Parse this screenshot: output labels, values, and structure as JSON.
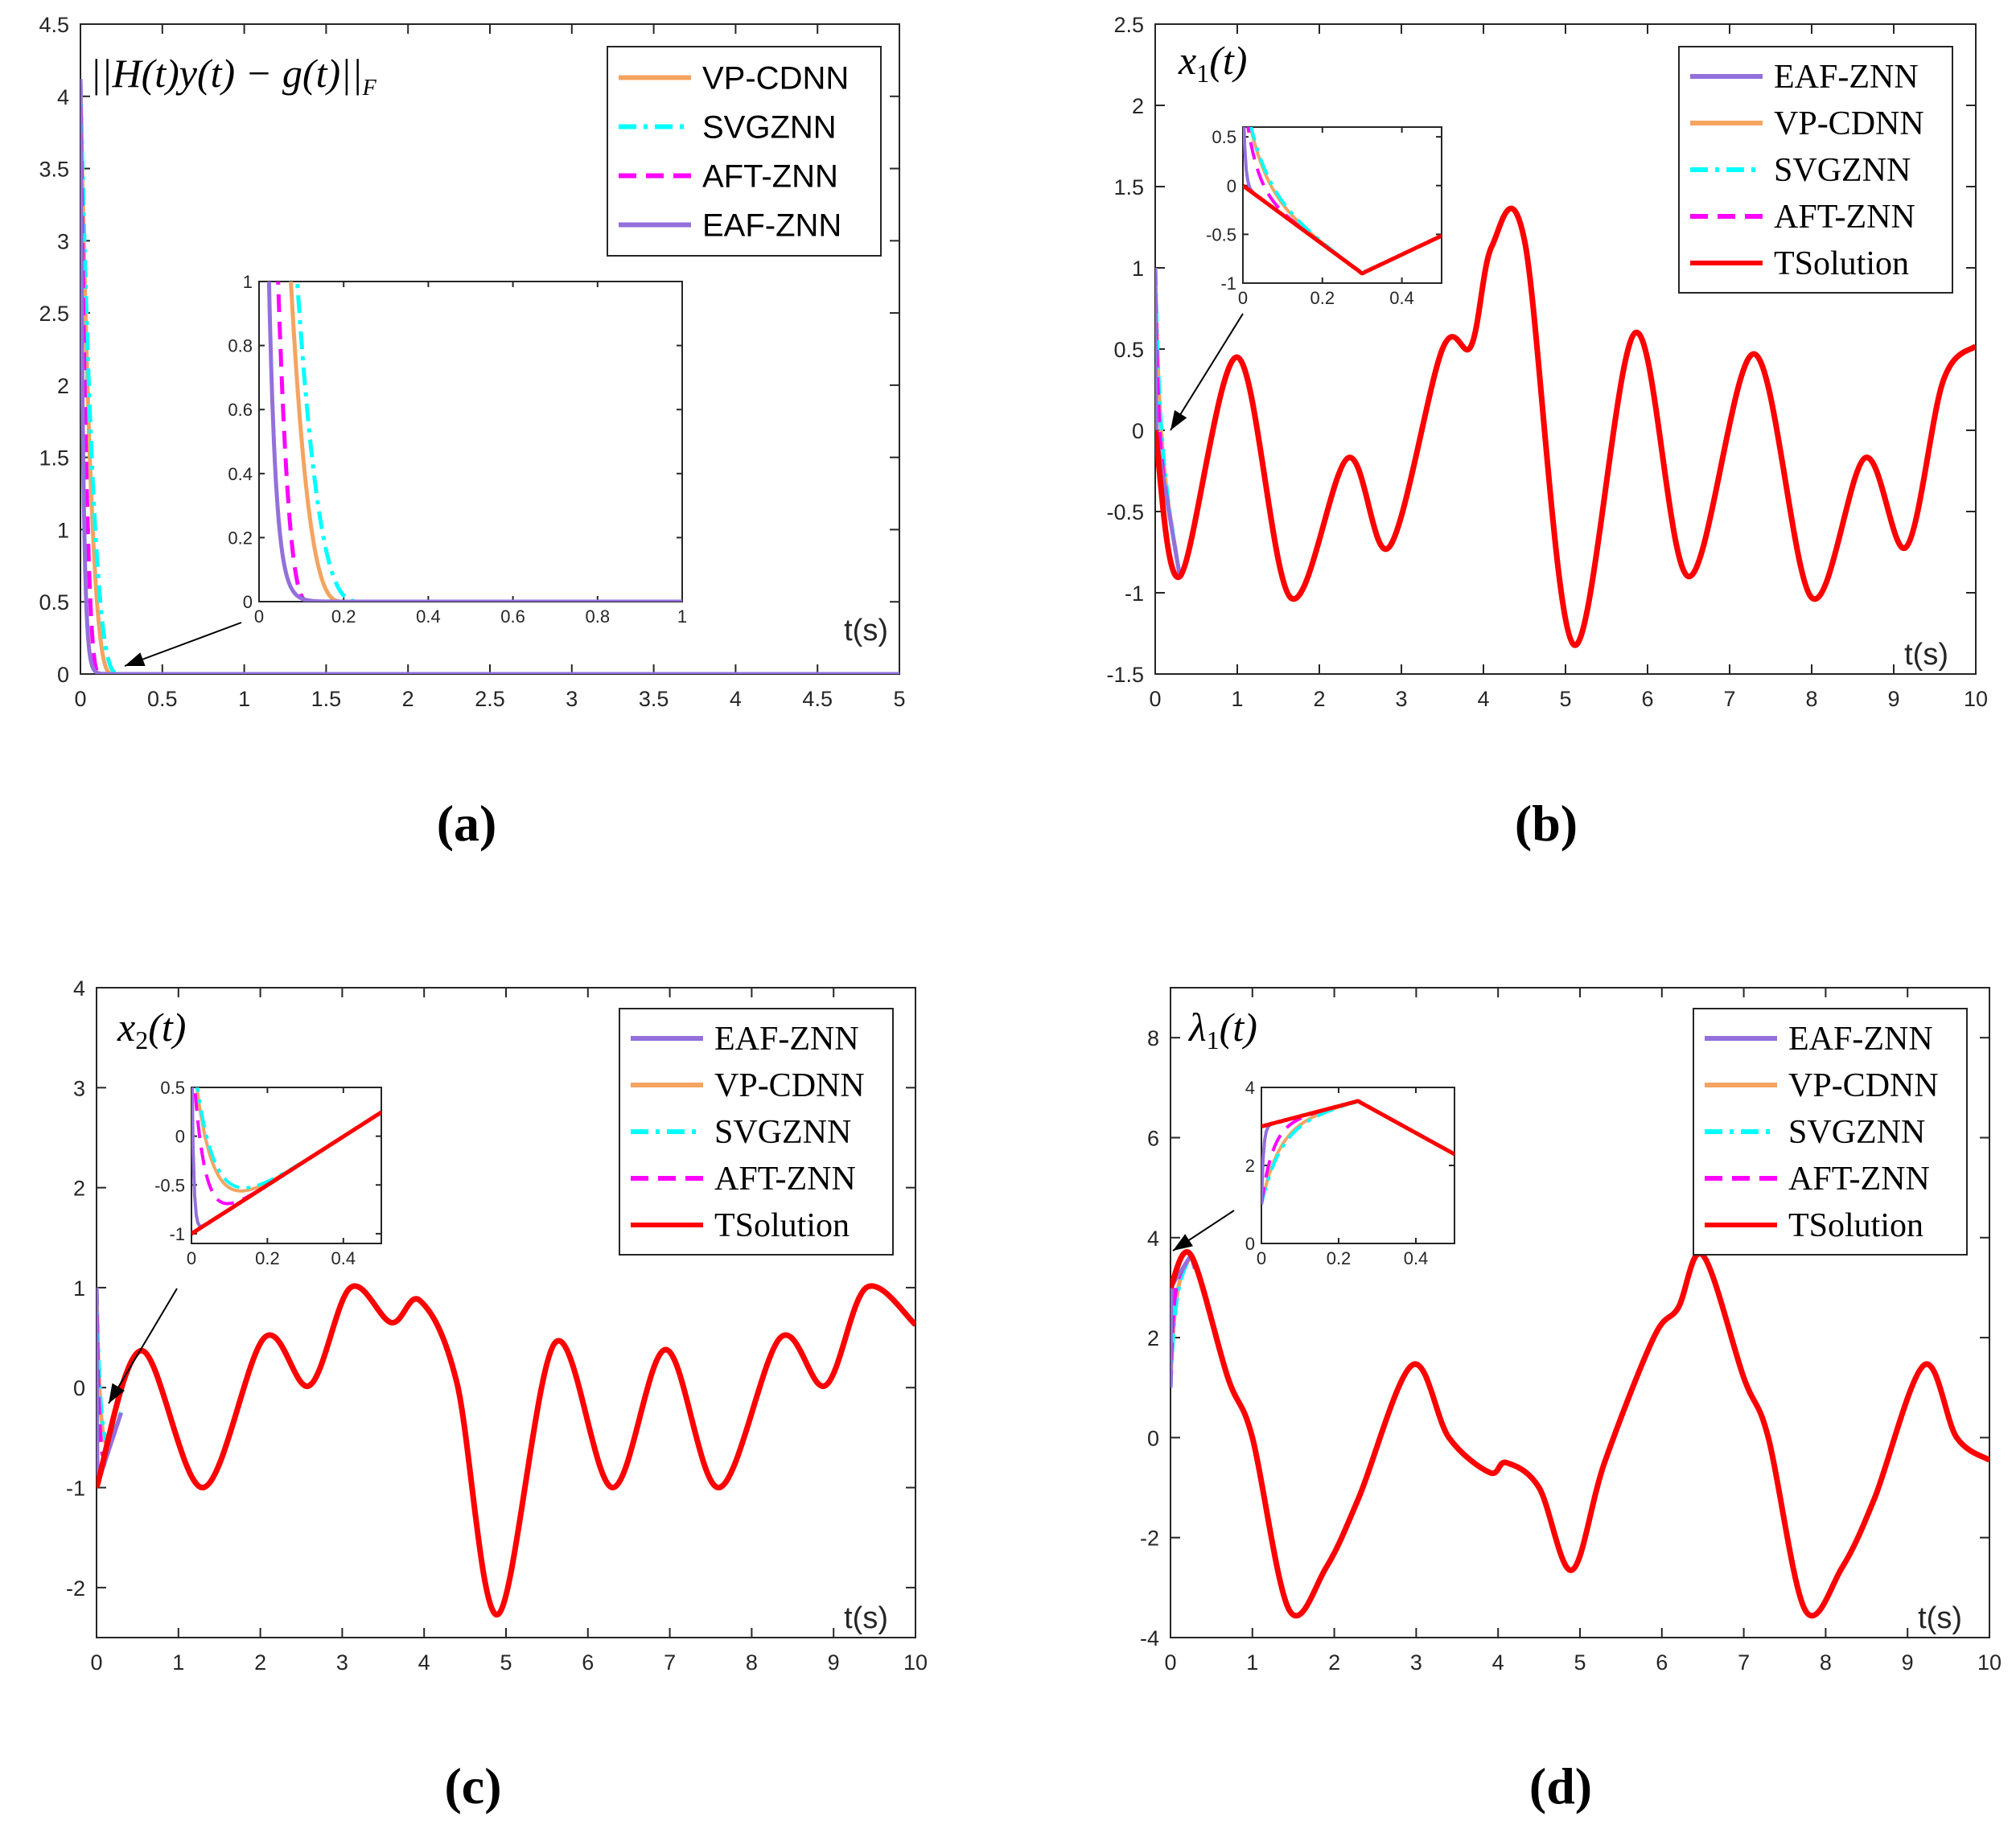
{
  "colors": {
    "EAF-ZNN": "#9370db",
    "VP-CDNN": "#f4a460",
    "SVGZNN": "#00ffff",
    "AFT-ZNN": "#ff00ff",
    "TSolution": "#ff0000"
  },
  "chart_data": [
    {
      "type": "line",
      "panel_label": "(a)",
      "title": "||H(t)y(t) − g(t)||F",
      "xlabel": "t(s)",
      "xlim": [
        0,
        5
      ],
      "ylim": [
        0,
        4.5
      ],
      "xticks": [
        "0",
        "0.5",
        "1",
        "1.5",
        "2",
        "2.5",
        "3",
        "3.5",
        "4",
        "4.5",
        "5"
      ],
      "yticks": [
        "0",
        "0.5",
        "1",
        "1.5",
        "2",
        "2.5",
        "3",
        "3.5",
        "4",
        "4.5"
      ],
      "legend": [
        "VP-CDNN",
        "SVGZNN",
        "AFT-ZNN",
        "EAF-ZNN"
      ],
      "legend_font": "sans",
      "series": [
        {
          "name": "EAF-ZNN",
          "initial": 4.12,
          "decay_rate": 60,
          "style": "solid"
        },
        {
          "name": "VP-CDNN",
          "initial": 4.12,
          "settle_time": 0.2,
          "style": "solid"
        },
        {
          "name": "SVGZNN",
          "initial": 4.12,
          "settle_time": 0.24,
          "style": "dashdot"
        },
        {
          "name": "AFT-ZNN",
          "initial": 4.12,
          "settle_time": 0.12,
          "style": "dashed"
        }
      ],
      "inset": {
        "xlim": [
          0,
          1
        ],
        "ylim": [
          0,
          1
        ],
        "xticks": [
          "0",
          "0.2",
          "0.4",
          "0.6",
          "0.8",
          "1"
        ],
        "yticks": [
          "0",
          "0.2",
          "0.4",
          "0.6",
          "0.8",
          "1"
        ]
      }
    },
    {
      "type": "line",
      "panel_label": "(b)",
      "title": "x1(t)",
      "title_main": "x",
      "title_sub": "1",
      "title_tail": "(t)",
      "xlabel": "t(s)",
      "xlim": [
        0,
        10
      ],
      "ylim": [
        -1.5,
        2.5
      ],
      "xticks": [
        "0",
        "1",
        "2",
        "3",
        "4",
        "5",
        "6",
        "7",
        "8",
        "9",
        "10"
      ],
      "yticks": [
        "-1.5",
        "-1",
        "-0.5",
        "0",
        "0.5",
        "1",
        "1.5",
        "2",
        "2.5"
      ],
      "legend": [
        "EAF-ZNN",
        "VP-CDNN",
        "SVGZNN",
        "AFT-ZNN",
        "TSolution"
      ],
      "legend_font": "serif",
      "solution_points": [
        [
          0,
          0
        ],
        [
          0.3,
          -0.9
        ],
        [
          1.0,
          0.45
        ],
        [
          1.65,
          -1.03
        ],
        [
          2.35,
          -0.17
        ],
        [
          2.85,
          -0.72
        ],
        [
          3.5,
          0.5
        ],
        [
          3.85,
          0.52
        ],
        [
          4.1,
          1.13
        ],
        [
          4.5,
          1.17
        ],
        [
          5.1,
          -1.32
        ],
        [
          5.85,
          0.6
        ],
        [
          6.5,
          -0.9
        ],
        [
          7.3,
          0.47
        ],
        [
          8.0,
          -1.03
        ],
        [
          8.65,
          -0.17
        ],
        [
          9.15,
          -0.72
        ],
        [
          9.6,
          0.3
        ],
        [
          10,
          0.52
        ]
      ],
      "initial_values": {
        "EAF-ZNN": 1.0,
        "VP-CDNN": 1.0,
        "SVGZNN": 1.0,
        "AFT-ZNN": 1.0
      },
      "inset": {
        "xlim": [
          0,
          0.5
        ],
        "ylim": [
          -1,
          0.6
        ],
        "xticks": [
          "0",
          "0.2",
          "0.4"
        ],
        "yticks": [
          "-1",
          "-0.5",
          "0",
          "0.5"
        ]
      }
    },
    {
      "type": "line",
      "panel_label": "(c)",
      "title": "x2(t)",
      "title_main": "x",
      "title_sub": "2",
      "title_tail": "(t)",
      "xlabel": "t(s)",
      "xlim": [
        0,
        10
      ],
      "ylim": [
        -2.5,
        4
      ],
      "xticks": [
        "0",
        "1",
        "2",
        "3",
        "4",
        "5",
        "6",
        "7",
        "8",
        "9",
        "10"
      ],
      "yticks": [
        "-2",
        "-1",
        "0",
        "1",
        "2",
        "3",
        "4"
      ],
      "legend": [
        "EAF-ZNN",
        "VP-CDNN",
        "SVGZNN",
        "AFT-ZNN",
        "TSolution"
      ],
      "legend_font": "serif",
      "solution_points": [
        [
          0,
          -1.0
        ],
        [
          0.55,
          0.37
        ],
        [
          1.3,
          -1.0
        ],
        [
          2.05,
          0.5
        ],
        [
          2.6,
          0.02
        ],
        [
          3.1,
          1.0
        ],
        [
          3.6,
          0.65
        ],
        [
          3.95,
          0.87
        ],
        [
          4.4,
          0.05
        ],
        [
          4.9,
          -2.27
        ],
        [
          5.6,
          0.45
        ],
        [
          6.3,
          -1.0
        ],
        [
          6.95,
          0.38
        ],
        [
          7.6,
          -1.0
        ],
        [
          8.35,
          0.5
        ],
        [
          8.9,
          0.02
        ],
        [
          9.4,
          1.0
        ],
        [
          10,
          0.63
        ]
      ],
      "initial_values": {
        "EAF-ZNN": 1.0,
        "VP-CDNN": 1.0,
        "SVGZNN": 1.0,
        "AFT-ZNN": 1.0
      },
      "inset": {
        "xlim": [
          0,
          0.5
        ],
        "ylim": [
          -1.1,
          0.5
        ],
        "xticks": [
          "0",
          "0.2",
          "0.4"
        ],
        "yticks": [
          "-1",
          "-0.5",
          "0",
          "0.5"
        ]
      }
    },
    {
      "type": "line",
      "panel_label": "(d)",
      "title": "λ1(t)",
      "title_main": "λ",
      "title_sub": "1",
      "title_tail": "(t)",
      "xlabel": "t(s)",
      "xlim": [
        0,
        10
      ],
      "ylim": [
        -4,
        9
      ],
      "xticks": [
        "0",
        "1",
        "2",
        "3",
        "4",
        "5",
        "6",
        "7",
        "8",
        "9",
        "10"
      ],
      "yticks": [
        "-4",
        "-2",
        "0",
        "2",
        "4",
        "6",
        "8"
      ],
      "legend": [
        "EAF-ZNN",
        "VP-CDNN",
        "SVGZNN",
        "AFT-ZNN",
        "TSolution"
      ],
      "legend_font": "serif",
      "solution_points": [
        [
          0,
          3.0
        ],
        [
          0.25,
          3.65
        ],
        [
          0.7,
          1.2
        ],
        [
          1.0,
          0.0
        ],
        [
          1.45,
          -3.45
        ],
        [
          1.9,
          -2.6
        ],
        [
          2.3,
          -1.2
        ],
        [
          2.95,
          1.45
        ],
        [
          3.4,
          0.0
        ],
        [
          3.9,
          -0.7
        ],
        [
          4.1,
          -0.5
        ],
        [
          4.5,
          -1.0
        ],
        [
          4.9,
          -2.65
        ],
        [
          5.3,
          -0.5
        ],
        [
          5.9,
          2.0
        ],
        [
          6.2,
          2.6
        ],
        [
          6.5,
          3.65
        ],
        [
          7.0,
          1.2
        ],
        [
          7.3,
          0.0
        ],
        [
          7.75,
          -3.45
        ],
        [
          8.2,
          -2.6
        ],
        [
          8.6,
          -1.2
        ],
        [
          9.2,
          1.45
        ],
        [
          9.6,
          0.0
        ],
        [
          10,
          -0.45
        ]
      ],
      "initial_values": {
        "EAF-ZNN": 1.0,
        "VP-CDNN": 1.0,
        "SVGZNN": 1.0,
        "AFT-ZNN": 1.0
      },
      "inset": {
        "xlim": [
          0,
          0.5
        ],
        "ylim": [
          0,
          4
        ],
        "xticks": [
          "0",
          "0.2",
          "0.4"
        ],
        "yticks": [
          "0",
          "2",
          "4"
        ]
      }
    }
  ]
}
